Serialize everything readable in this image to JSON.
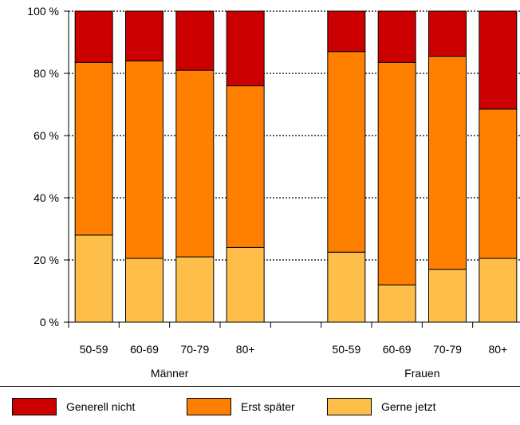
{
  "chart_data": {
    "type": "bar",
    "stacked": true,
    "groups": [
      "Männer",
      "Frauen"
    ],
    "categories": [
      "50-59",
      "60-69",
      "70-79",
      "80+",
      "",
      "50-59",
      "60-69",
      "70-79",
      "80+"
    ],
    "series": [
      {
        "name": "Gerne jetzt",
        "color": "#FDBE4A",
        "values": [
          28,
          20.5,
          21,
          24,
          0,
          22.5,
          12,
          17,
          20.5
        ]
      },
      {
        "name": "Erst später",
        "color": "#FF8000",
        "values": [
          55.5,
          63.5,
          60,
          52,
          0,
          64.5,
          71.5,
          68.5,
          48
        ]
      },
      {
        "name": "Generell nicht",
        "color": "#CC0000",
        "values": [
          16.5,
          16,
          19,
          24,
          0,
          13,
          16.5,
          14.5,
          31.5
        ]
      }
    ],
    "yticks": [
      "0 %",
      "20 %",
      "40 %",
      "60 %",
      "80 %",
      "100 %"
    ],
    "ylim": [
      0,
      100
    ],
    "grid": true,
    "legend_position": "bottom",
    "legend_order": [
      "Generell nicht",
      "Erst später",
      "Gerne jetzt"
    ]
  }
}
